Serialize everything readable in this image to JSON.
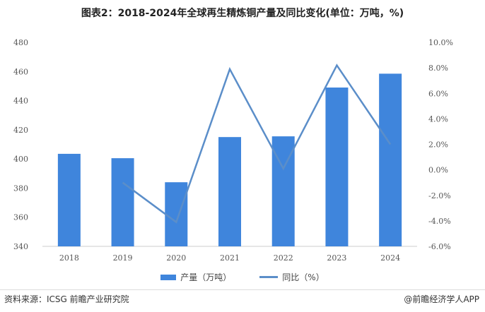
{
  "chart_data": {
    "type": "bar+line",
    "title": "图表2：2018-2024年全球再生精炼铜产量及同比变化(单位：万吨，%)",
    "categories": [
      "2018",
      "2019",
      "2020",
      "2021",
      "2022",
      "2023",
      "2024"
    ],
    "series": [
      {
        "name": "产量（万吨）",
        "type": "bar",
        "axis": "left",
        "color": "#3f85dc",
        "values": [
          403.5,
          400.5,
          384,
          415,
          415.5,
          449,
          458.5
        ]
      },
      {
        "name": "同比（%）",
        "type": "line",
        "axis": "right",
        "color": "#5b8ec9",
        "values": [
          null,
          -1.0,
          -4.1,
          7.9,
          0.1,
          8.2,
          2.0
        ]
      }
    ],
    "ylim_left": [
      340,
      480
    ],
    "yticks_left": [
      "480",
      "460",
      "440",
      "420",
      "400",
      "380",
      "360",
      "340"
    ],
    "ylim_right": [
      -6,
      10
    ],
    "yticks_right": [
      "10.0%",
      "8.0%",
      "6.0%",
      "4.0%",
      "2.0%",
      "0.0%",
      "-2.0%",
      "-4.0%",
      "-6.0%"
    ],
    "grid": false,
    "legend_position": "bottom"
  },
  "footer": {
    "source": "资料来源：ICSG 前瞻产业研究院",
    "brand": "@前瞻经济学人APP"
  }
}
